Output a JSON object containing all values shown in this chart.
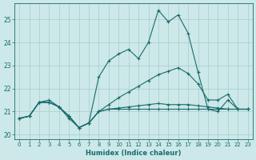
{
  "title": "",
  "xlabel": "Humidex (Indice chaleur)",
  "bg_color": "#cce8e8",
  "grid_color": "#aacccc",
  "line_color": "#1a6b6b",
  "xlim": [
    -0.5,
    23.5
  ],
  "ylim": [
    19.8,
    25.7
  ],
  "yticks": [
    20,
    21,
    22,
    23,
    24,
    25
  ],
  "xticks": [
    0,
    1,
    2,
    3,
    4,
    5,
    6,
    7,
    8,
    9,
    10,
    11,
    12,
    13,
    14,
    15,
    16,
    17,
    18,
    19,
    20,
    21,
    22,
    23
  ],
  "series1": [
    20.7,
    20.8,
    21.4,
    21.5,
    21.2,
    20.7,
    20.3,
    20.5,
    22.5,
    23.2,
    23.5,
    23.7,
    23.3,
    24.0,
    25.4,
    24.9,
    25.2,
    24.4,
    22.7,
    21.1,
    21.0,
    21.5,
    21.1,
    21.1
  ],
  "series2": [
    20.7,
    20.8,
    21.4,
    21.4,
    21.2,
    20.8,
    20.3,
    20.5,
    21.0,
    21.1,
    21.15,
    21.2,
    21.25,
    21.3,
    21.35,
    21.3,
    21.3,
    21.3,
    21.25,
    21.2,
    21.15,
    21.1,
    21.1,
    21.1
  ],
  "series3": [
    20.7,
    20.8,
    21.4,
    21.4,
    21.2,
    20.8,
    20.3,
    20.5,
    21.0,
    21.3,
    21.6,
    21.85,
    22.1,
    22.35,
    22.6,
    22.75,
    22.9,
    22.65,
    22.2,
    21.5,
    21.5,
    21.75,
    21.1,
    21.1
  ],
  "series4": [
    20.7,
    20.8,
    21.4,
    21.4,
    21.2,
    20.8,
    20.3,
    20.5,
    21.0,
    21.1,
    21.1,
    21.1,
    21.1,
    21.1,
    21.1,
    21.1,
    21.1,
    21.1,
    21.1,
    21.1,
    21.1,
    21.1,
    21.1,
    21.1
  ]
}
